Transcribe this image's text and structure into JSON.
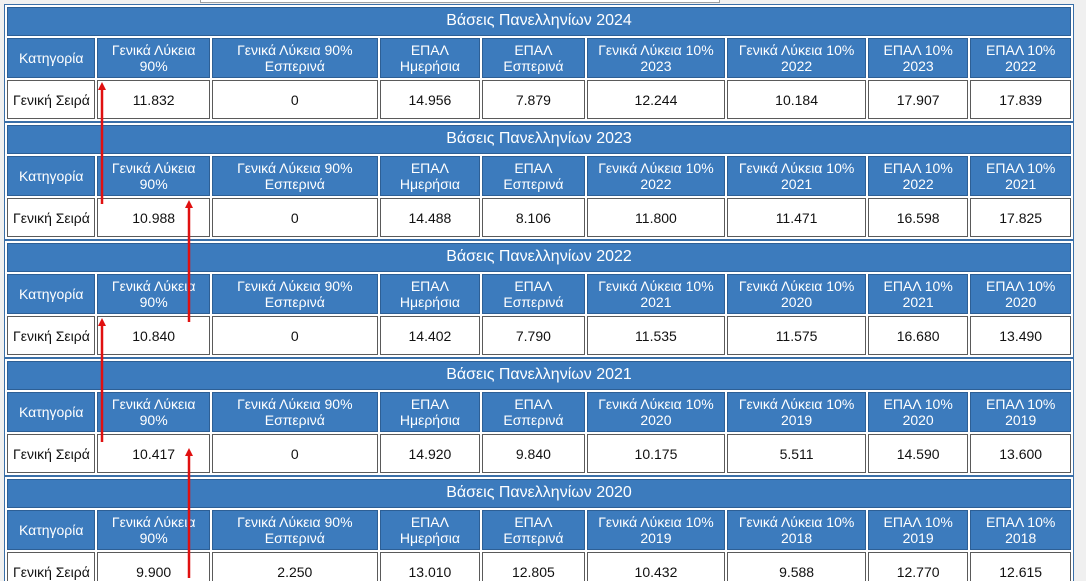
{
  "headers": [
    "Κατηγορία",
    "Γενικά Λύκεια 90%",
    "Γενικά Λύκεια 90% Εσπερινά",
    "ΕΠΑΛ Ημερήσια",
    "ΕΠΑΛ Εσπερινά",
    "Γενικά Λύκεια 10%",
    "Γενικά Λύκεια 10%",
    "ΕΠΑΛ 10%",
    "ΕΠΑΛ 10%"
  ],
  "blocks": [
    {
      "title": "Βάσεις Πανελληνίων 2024",
      "years": [
        "2023",
        "2022",
        "2023",
        "2022"
      ],
      "category": "Γενική Σειρά",
      "values": [
        "11.832",
        "0",
        "14.956",
        "7.879",
        "12.244",
        "10.184",
        "17.907",
        "17.839"
      ]
    },
    {
      "title": "Βάσεις Πανελληνίων 2023",
      "years": [
        "2022",
        "2021",
        "2022",
        "2021"
      ],
      "category": "Γενική Σειρά",
      "values": [
        "10.988",
        "0",
        "14.488",
        "8.106",
        "11.800",
        "11.471",
        "16.598",
        "17.825"
      ]
    },
    {
      "title": "Βάσεις Πανελληνίων 2022",
      "years": [
        "2021",
        "2020",
        "2021",
        "2020"
      ],
      "category": "Γενική Σειρά",
      "values": [
        "10.840",
        "0",
        "14.402",
        "7.790",
        "11.535",
        "11.575",
        "16.680",
        "13.490"
      ]
    },
    {
      "title": "Βάσεις Πανελληνίων 2021",
      "years": [
        "2020",
        "2019",
        "2020",
        "2019"
      ],
      "category": "Γενική Σειρά",
      "values": [
        "10.417",
        "0",
        "14.920",
        "9.840",
        "10.175",
        "5.511",
        "14.590",
        "13.600"
      ]
    },
    {
      "title": "Βάσεις Πανελληνίων 2020",
      "years": [
        "2019",
        "2018",
        "2019",
        "2018"
      ],
      "category": "Γενική Σειρά",
      "values": [
        "9.900",
        "2.250",
        "13.010",
        "12.805",
        "10.432",
        "9.588",
        "12.770",
        "12.615"
      ]
    }
  ],
  "colors": {
    "header_blue": "#3c7bbd",
    "arrow_red": "#e01010"
  }
}
